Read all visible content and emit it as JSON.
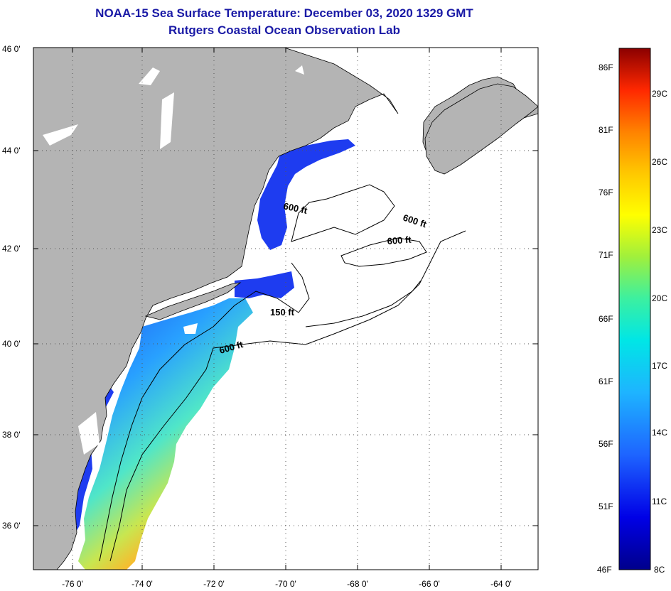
{
  "header": {
    "title": "NOAA-15 Sea Surface Temperature:  December 03, 2020 1329 GMT",
    "subtitle": "Rutgers Coastal Ocean Observation Lab"
  },
  "axes": {
    "lat_labels": [
      "46 0'",
      "44 0'",
      "42 0'",
      "40 0'",
      "38 0'",
      "36 0'"
    ],
    "lon_labels": [
      "-76 0'",
      "-74 0'",
      "-72 0'",
      "-70 0'",
      "-68 0'",
      "-66 0'",
      "-64 0'"
    ]
  },
  "contours": {
    "label_600_a": "600 ft",
    "label_600_b": "600 ft",
    "label_600_c": "600 ft",
    "label_600_d": "600 ft",
    "label_150": "150 ft"
  },
  "colorbar": {
    "fahrenheit": [
      "86F",
      "81F",
      "76F",
      "71F",
      "66F",
      "61F",
      "56F",
      "51F",
      "46F"
    ],
    "celsius": [
      "29C",
      "26C",
      "23C",
      "20C",
      "17C",
      "14C",
      "11C",
      "8C"
    ]
  },
  "colors": {
    "land": "#b4b4b4",
    "title": "#1a1aa6",
    "ocean_cold": "#1e3cf0",
    "ocean_warm": "#ff6a10"
  }
}
